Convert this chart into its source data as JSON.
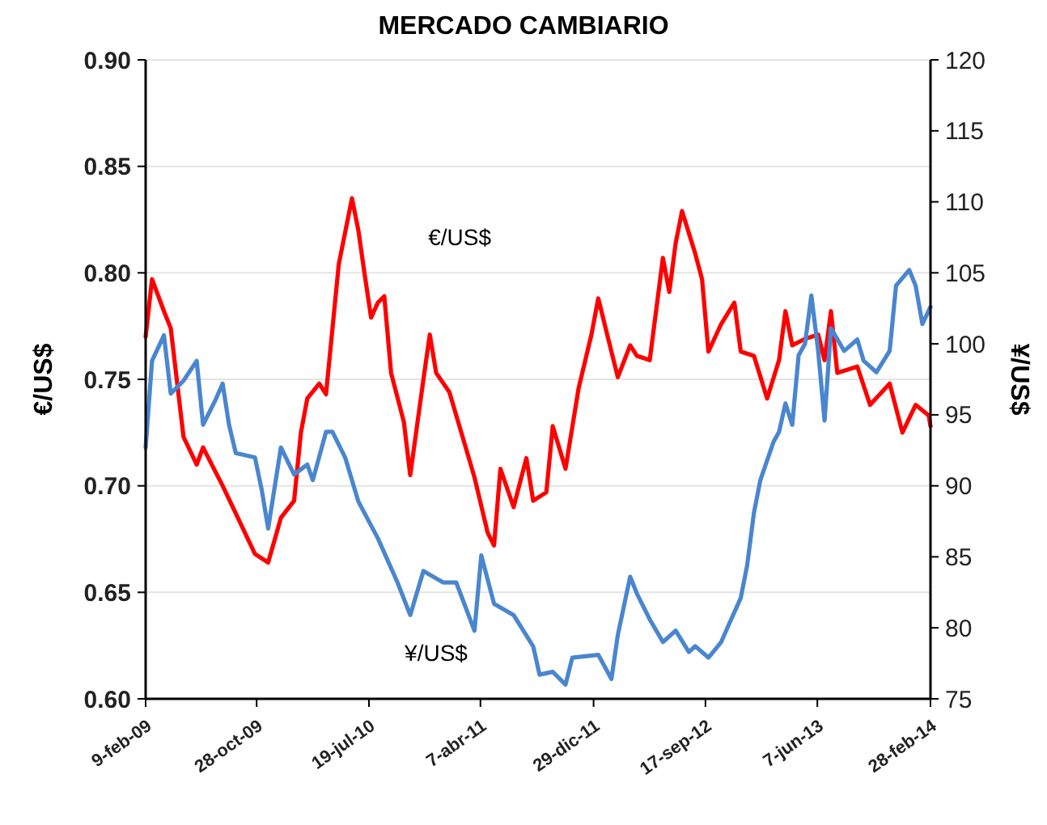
{
  "chart_data": {
    "type": "line",
    "title": "MERCADO CAMBIARIO",
    "ylabel": "€/US$",
    "y2label": "¥/US$",
    "xlim": [
      "2009-02-09",
      "2014-02-28"
    ],
    "xticks": [
      {
        "value": "2009-02-09",
        "label": "9-feb-09"
      },
      {
        "value": "2009-10-28",
        "label": "28-oct-09"
      },
      {
        "value": "2010-07-19",
        "label": "19-jul-10"
      },
      {
        "value": "2011-04-07",
        "label": "7-abr-11"
      },
      {
        "value": "2011-12-29",
        "label": "29-dic-11"
      },
      {
        "value": "2012-09-17",
        "label": "17-sep-12"
      },
      {
        "value": "2013-06-07",
        "label": "7-jun-13"
      },
      {
        "value": "2014-02-28",
        "label": "28-feb-14"
      }
    ],
    "ylim": [
      0.6,
      0.9
    ],
    "yticks": [
      {
        "value": 0.6,
        "label": "0.60"
      },
      0.65,
      {
        "value": 0.7,
        "label": "0.70"
      },
      0.75,
      {
        "value": 0.8,
        "label": "0.80"
      },
      0.85,
      {
        "value": 0.9,
        "label": "0.90"
      }
    ],
    "y2lim": [
      75,
      120
    ],
    "y2ticks": [
      75,
      80,
      85,
      90,
      95,
      100,
      105,
      110,
      115,
      120
    ],
    "grid": "y",
    "line_style": "solid",
    "marker": "none",
    "series": [
      {
        "name": "€/US$",
        "color": "#ff0000",
        "x": [
          "2009-02-09",
          "2009-02-24",
          "2009-03-24",
          "2009-04-09",
          "2009-05-09",
          "2009-06-09",
          "2009-06-24",
          "2009-08-09",
          "2009-09-09",
          "2009-10-24",
          "2009-11-24",
          "2009-12-24",
          "2010-01-24",
          "2010-02-09",
          "2010-02-24",
          "2010-03-24",
          "2010-04-09",
          "2010-05-09",
          "2010-06-09",
          "2010-06-24",
          "2010-07-09",
          "2010-07-24",
          "2010-08-09",
          "2010-08-24",
          "2010-09-09",
          "2010-10-09",
          "2010-10-24",
          "2010-11-24",
          "2010-12-09",
          "2010-12-24",
          "2011-01-24",
          "2011-02-24",
          "2011-03-24",
          "2011-04-24",
          "2011-05-09",
          "2011-05-24",
          "2011-06-24",
          "2011-07-24",
          "2011-08-09",
          "2011-09-09",
          "2011-09-24",
          "2011-10-24",
          "2011-11-24",
          "2011-12-24",
          "2012-01-09",
          "2012-02-09",
          "2012-02-24",
          "2012-03-24",
          "2012-04-09",
          "2012-05-09",
          "2012-06-09",
          "2012-06-24",
          "2012-07-09",
          "2012-07-24",
          "2012-08-24",
          "2012-09-09",
          "2012-09-24",
          "2012-10-24",
          "2012-11-24",
          "2012-12-09",
          "2013-01-09",
          "2013-02-09",
          "2013-03-09",
          "2013-03-24",
          "2013-04-09",
          "2013-05-09",
          "2013-06-09",
          "2013-06-24",
          "2013-07-09",
          "2013-07-24",
          "2013-09-09",
          "2013-10-09",
          "2013-11-24",
          "2013-12-24",
          "2014-01-24",
          "2014-02-24",
          "2014-02-28"
        ],
        "values": [
          0.77,
          0.797,
          0.782,
          0.774,
          0.723,
          0.71,
          0.718,
          0.7,
          0.687,
          0.668,
          0.664,
          0.685,
          0.693,
          0.725,
          0.741,
          0.748,
          0.743,
          0.804,
          0.835,
          0.82,
          0.799,
          0.779,
          0.786,
          0.789,
          0.753,
          0.73,
          0.705,
          0.75,
          0.771,
          0.753,
          0.744,
          0.723,
          0.704,
          0.678,
          0.672,
          0.708,
          0.69,
          0.713,
          0.693,
          0.697,
          0.728,
          0.708,
          0.746,
          0.771,
          0.788,
          0.763,
          0.751,
          0.766,
          0.761,
          0.759,
          0.807,
          0.791,
          0.814,
          0.829,
          0.809,
          0.797,
          0.763,
          0.776,
          0.786,
          0.763,
          0.761,
          0.741,
          0.759,
          0.782,
          0.766,
          0.769,
          0.771,
          0.759,
          0.782,
          0.753,
          0.756,
          0.738,
          0.748,
          0.725,
          0.738,
          0.733,
          0.728
        ]
      },
      {
        "name": "¥/US$",
        "color": "#4a86d0",
        "axis": "y2",
        "x": [
          "2009-02-09",
          "2009-02-24",
          "2009-03-24",
          "2009-04-09",
          "2009-05-09",
          "2009-06-09",
          "2009-06-24",
          "2009-07-24",
          "2009-08-09",
          "2009-08-24",
          "2009-09-09",
          "2009-10-24",
          "2009-11-09",
          "2009-11-24",
          "2009-12-24",
          "2010-01-24",
          "2010-02-24",
          "2010-03-09",
          "2010-04-09",
          "2010-04-24",
          "2010-05-24",
          "2010-06-24",
          "2010-08-09",
          "2010-09-24",
          "2010-10-24",
          "2010-11-24",
          "2011-01-09",
          "2011-02-09",
          "2011-03-24",
          "2011-04-09",
          "2011-05-09",
          "2011-06-24",
          "2011-08-09",
          "2011-08-24",
          "2011-09-24",
          "2011-10-24",
          "2011-11-09",
          "2012-01-09",
          "2012-02-09",
          "2012-02-24",
          "2012-03-24",
          "2012-04-09",
          "2012-05-09",
          "2012-06-09",
          "2012-07-09",
          "2012-08-09",
          "2012-08-24",
          "2012-09-24",
          "2012-10-24",
          "2012-11-09",
          "2012-12-09",
          "2012-12-24",
          "2013-01-09",
          "2013-01-24",
          "2013-02-24",
          "2013-03-09",
          "2013-03-24",
          "2013-04-09",
          "2013-04-24",
          "2013-05-09",
          "2013-05-24",
          "2013-06-09",
          "2013-06-24",
          "2013-07-09",
          "2013-08-09",
          "2013-09-09",
          "2013-09-24",
          "2013-10-24",
          "2013-11-24",
          "2013-12-09",
          "2014-01-09",
          "2014-01-24",
          "2014-02-09",
          "2014-02-28"
        ],
        "values": [
          92.7,
          98.8,
          100.6,
          96.5,
          97.4,
          98.8,
          94.3,
          96.1,
          97.2,
          94.3,
          92.3,
          92,
          89.7,
          87,
          92.7,
          90.8,
          91.5,
          90.4,
          93.8,
          93.8,
          92,
          88.9,
          86.3,
          83.2,
          80.9,
          84,
          83.2,
          83.2,
          79.8,
          85.1,
          81.7,
          80.9,
          78.7,
          76.7,
          76.9,
          76,
          77.9,
          78.1,
          76.4,
          79.5,
          83.6,
          82.4,
          80.6,
          79,
          79.8,
          78.3,
          78.7,
          77.9,
          79,
          80.1,
          82.1,
          84.4,
          88.1,
          90.4,
          93.1,
          93.8,
          95.8,
          94.3,
          99.2,
          100,
          103.4,
          99.5,
          94.6,
          101.1,
          99.5,
          100.3,
          98.8,
          98,
          99.5,
          104.1,
          105.2,
          104.1,
          101.4,
          102.6
        ]
      }
    ]
  }
}
